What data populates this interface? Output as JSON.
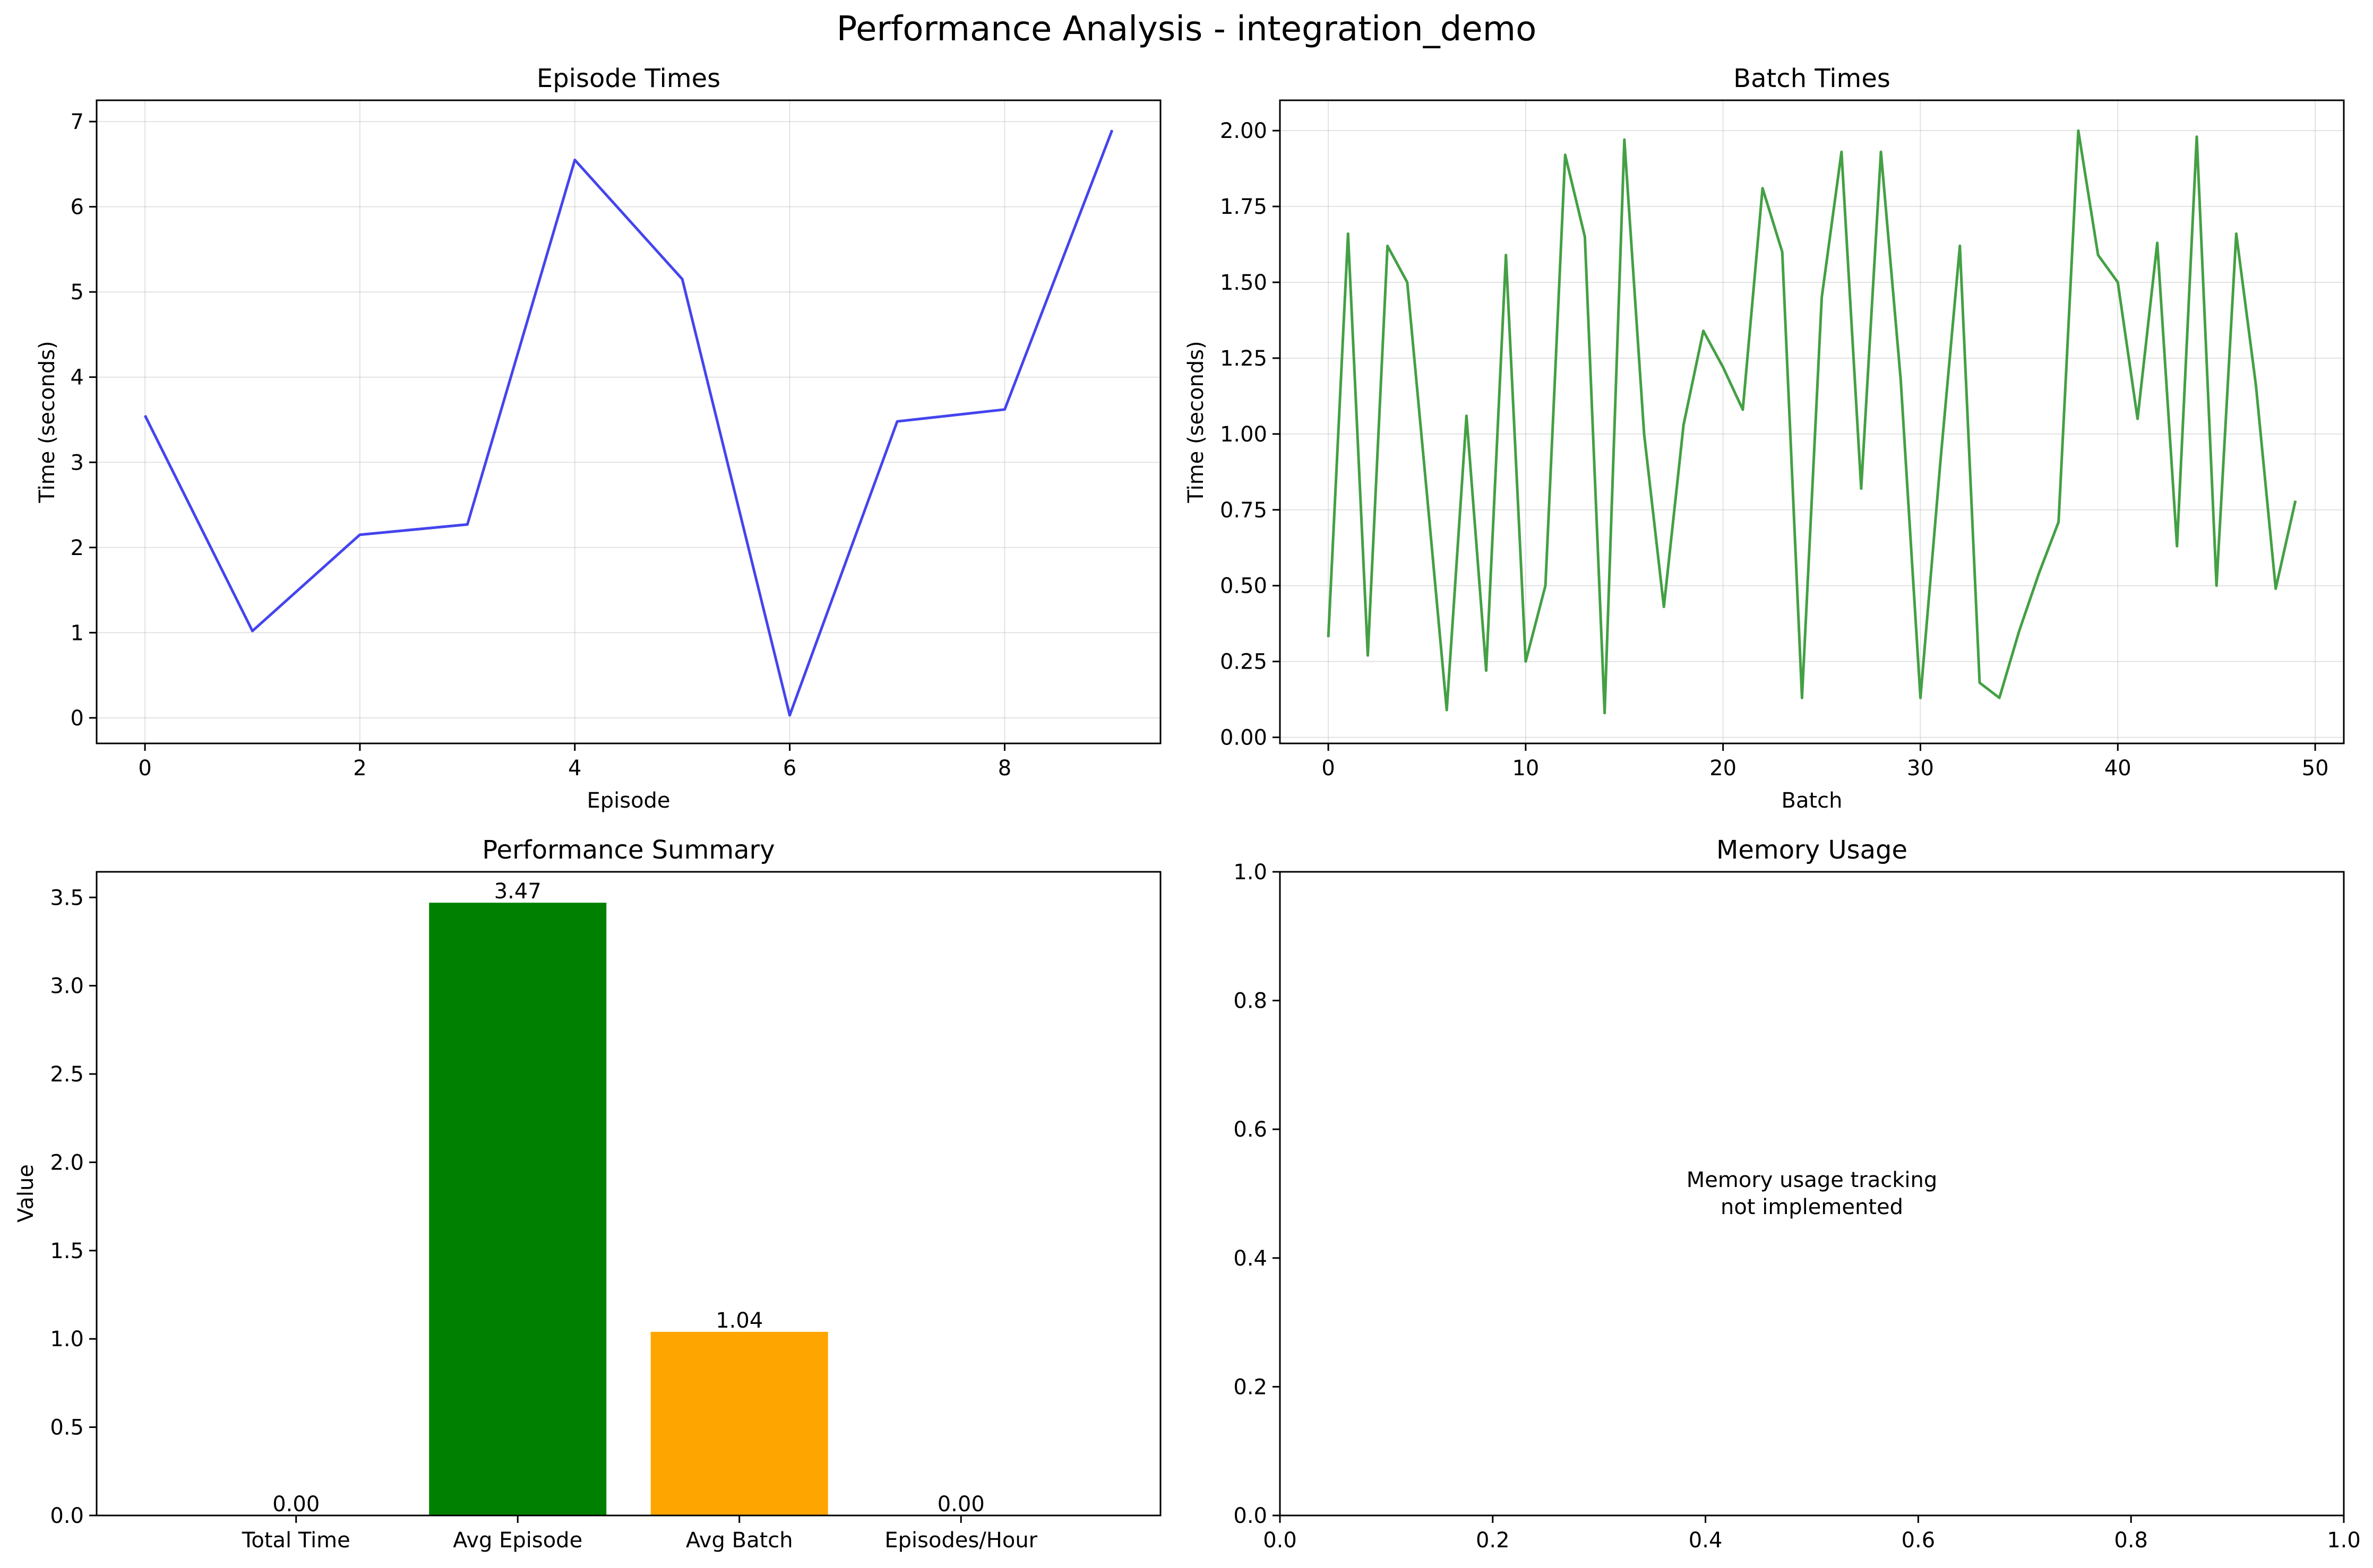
{
  "figure": {
    "title": "Performance Analysis - integration_demo"
  },
  "chart_data": [
    {
      "id": "episode",
      "type": "line",
      "title": "Episode Times",
      "xlabel": "Episode",
      "ylabel": "Time (seconds)",
      "xlim": [
        -0.45,
        9.45
      ],
      "ylim": [
        -0.3,
        7.25
      ],
      "xticks": [
        0,
        2,
        4,
        6,
        8
      ],
      "yticks": [
        0,
        1,
        2,
        3,
        4,
        5,
        6,
        7
      ],
      "grid": true,
      "series": [
        {
          "color": "#4444ee",
          "x": [
            0,
            1,
            2,
            3,
            4,
            5,
            6,
            7,
            8,
            9
          ],
          "y": [
            3.55,
            1.02,
            2.15,
            2.27,
            6.55,
            5.15,
            0.03,
            3.48,
            3.62,
            6.9
          ]
        }
      ]
    },
    {
      "id": "batch",
      "type": "line",
      "title": "Batch Times",
      "xlabel": "Batch",
      "ylabel": "Time (seconds)",
      "xlim": [
        -2.45,
        51.45
      ],
      "ylim": [
        -0.02,
        2.1
      ],
      "xticks": [
        0,
        10,
        20,
        30,
        40,
        50
      ],
      "yticks": [
        0.0,
        0.25,
        0.5,
        0.75,
        1.0,
        1.25,
        1.5,
        1.75,
        2.0
      ],
      "ytick_format": 2,
      "grid": true,
      "series": [
        {
          "color": "#44a044",
          "x": [
            0,
            1,
            2,
            3,
            4,
            5,
            6,
            7,
            8,
            9,
            10,
            11,
            12,
            13,
            14,
            15,
            16,
            17,
            18,
            19,
            20,
            21,
            22,
            23,
            24,
            25,
            26,
            27,
            28,
            29,
            30,
            31,
            32,
            33,
            34,
            35,
            36,
            37,
            38,
            39,
            40,
            41,
            42,
            43,
            44,
            45,
            46,
            47,
            48,
            49
          ],
          "y": [
            0.33,
            1.66,
            0.27,
            1.62,
            1.5,
            0.8,
            0.09,
            1.06,
            0.22,
            1.59,
            0.25,
            0.5,
            1.92,
            1.65,
            0.08,
            1.97,
            1.0,
            0.43,
            1.03,
            1.34,
            1.22,
            1.08,
            1.81,
            1.6,
            0.13,
            1.45,
            1.93,
            0.82,
            1.93,
            1.18,
            0.13,
            0.9,
            1.62,
            0.18,
            0.13,
            0.35,
            0.54,
            0.71,
            2.0,
            1.59,
            1.5,
            1.05,
            1.63,
            0.63,
            1.98,
            0.5,
            1.66,
            1.16,
            0.49,
            0.78
          ]
        }
      ]
    },
    {
      "id": "summary",
      "type": "bar",
      "title": "Performance Summary",
      "xlabel": "",
      "ylabel": "Value",
      "ylim": [
        0,
        3.645
      ],
      "yticks": [
        0.0,
        0.5,
        1.0,
        1.5,
        2.0,
        2.5,
        3.0,
        3.5
      ],
      "ytick_format": 1,
      "grid": false,
      "categories": [
        "Total Time",
        "Avg Episode",
        "Avg Batch",
        "Episodes/Hour"
      ],
      "values": [
        0.0,
        3.47,
        1.04,
        0.0
      ],
      "bar_labels": [
        "0.00",
        "3.47",
        "1.04",
        "0.00"
      ],
      "colors": [
        "#1f77b4",
        "#008000",
        "#ffa500",
        "#ff0000"
      ]
    },
    {
      "id": "memory",
      "type": "text",
      "title": "Memory Usage",
      "xlabel": "",
      "ylabel": "",
      "xlim": [
        0,
        1
      ],
      "ylim": [
        0,
        1
      ],
      "xticks": [
        0.0,
        0.2,
        0.4,
        0.6,
        0.8,
        1.0
      ],
      "yticks": [
        0.0,
        0.2,
        0.4,
        0.6,
        0.8,
        1.0
      ],
      "ytick_format": 1,
      "xtick_format": 1,
      "grid": false,
      "message": [
        "Memory usage tracking",
        "not implemented"
      ]
    }
  ]
}
